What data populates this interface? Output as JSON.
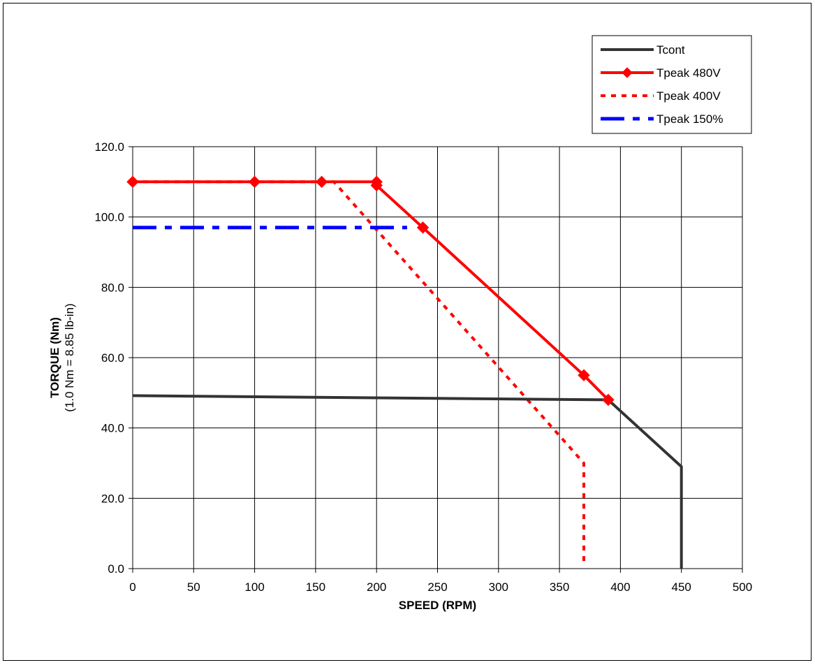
{
  "chart_data": {
    "type": "line",
    "xlabel": "SPEED (RPM)",
    "ylabel": "TORQUE (Nm)",
    "ylabel_sub": "(1.0 Nm = 8.85 lb-in)",
    "xlim": [
      0,
      500
    ],
    "ylim": [
      0,
      120
    ],
    "x_ticks": [
      "0",
      "50",
      "100",
      "150",
      "200",
      "250",
      "300",
      "350",
      "400",
      "450",
      "500"
    ],
    "y_ticks": [
      "0.0",
      "20.0",
      "40.0",
      "60.0",
      "80.0",
      "100.0",
      "120.0"
    ],
    "grid": true,
    "legend_position": "top-right",
    "series": [
      {
        "name": "Tcont",
        "color": "#333333",
        "style": "solid",
        "markers": false,
        "points": [
          [
            0,
            49.2
          ],
          [
            390,
            48.0
          ],
          [
            450,
            29.0
          ],
          [
            450,
            0.0
          ]
        ]
      },
      {
        "name": "Tpeak 480V",
        "color": "#ff0000",
        "style": "solid",
        "markers": true,
        "points": [
          [
            0,
            110.0
          ],
          [
            100,
            110.0
          ],
          [
            155,
            110.0
          ],
          [
            200,
            110.0
          ],
          [
            200,
            109.0
          ],
          [
            238,
            97.0
          ],
          [
            370,
            55.0
          ],
          [
            390,
            48.0
          ]
        ]
      },
      {
        "name": "Tpeak 400V",
        "color": "#ff0000",
        "style": "dotted",
        "markers": false,
        "points": [
          [
            0,
            110.0
          ],
          [
            165,
            110.0
          ],
          [
            370,
            30.0
          ],
          [
            370,
            2.0
          ]
        ]
      },
      {
        "name": "Tpeak 150%",
        "color": "#0000ff",
        "style": "dashdot",
        "markers": false,
        "points": [
          [
            0,
            97.0
          ],
          [
            225,
            97.0
          ]
        ]
      }
    ]
  }
}
